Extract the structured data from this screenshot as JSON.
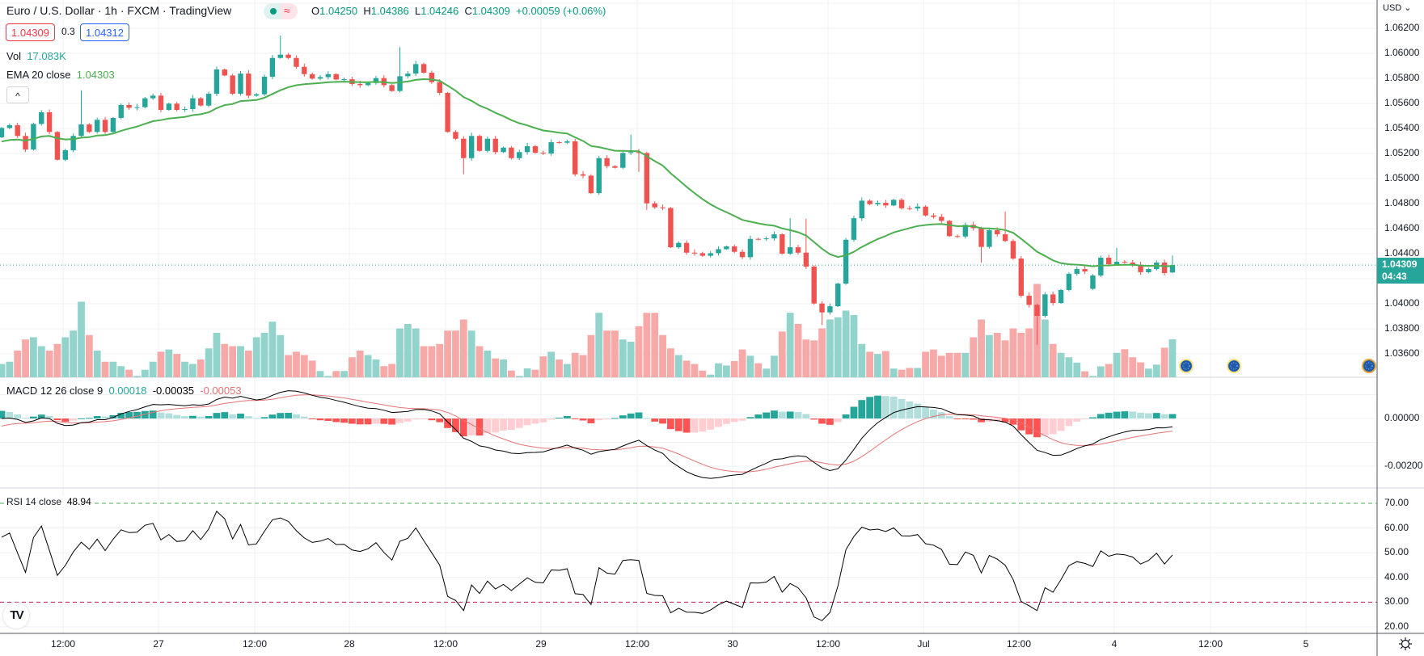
{
  "header": {
    "title": "Euro / U.S. Dollar · 1h · FXCM · TradingView",
    "status_wave": "≈",
    "ohlc": {
      "o_label": "O",
      "o": "1.04250",
      "h_label": "H",
      "h": "1.04386",
      "l_label": "L",
      "l": "1.04246",
      "c_label": "C",
      "c": "1.04309",
      "change": "+0.00059 (+0.06%)"
    },
    "sell_price": "1.04309",
    "spread": "0.3",
    "buy_price": "1.04312"
  },
  "legends": {
    "vol_label": "Vol",
    "vol_value": "17.083K",
    "ema_label": "EMA 20 close",
    "ema_value": "1.04303",
    "collapse_icon": "^",
    "macd_label": "MACD 12 26 close 9",
    "macd_hist": "0.00018",
    "macd_line": "-0.00035",
    "macd_signal": "-0.00053",
    "rsi_label": "RSI 14 close",
    "rsi_value": "48.94"
  },
  "price_axis": {
    "currency": "USD ⌄",
    "labels": [
      "1.06200",
      "1.06000",
      "1.05800",
      "1.05600",
      "1.05400",
      "1.05200",
      "1.05000",
      "1.04800",
      "1.04600",
      "1.04400",
      "1.04000",
      "1.03800",
      "1.03600"
    ],
    "last_price": "1.04309",
    "countdown": "04:43"
  },
  "macd_axis": {
    "labels": [
      "0.00000",
      "-0.00200"
    ]
  },
  "rsi_axis": {
    "labels": [
      "70.00",
      "60.00",
      "50.00",
      "40.00",
      "30.00",
      "20.00"
    ]
  },
  "time_axis": {
    "labels": [
      "12:00",
      "27",
      "12:00",
      "28",
      "12:00",
      "29",
      "12:00",
      "30",
      "12:00",
      "Jul",
      "12:00",
      "4",
      "12:00",
      "5"
    ]
  },
  "logo_text": "TV",
  "colors": {
    "up": "#26a69a",
    "down": "#ef5350",
    "vol_up": "#92d3cc",
    "vol_down": "#f7a9a7",
    "ema": "#4caf50",
    "macd": "#000000",
    "signal": "#e57373",
    "rsi": "#000000"
  },
  "chart_data": {
    "type": "candlestick",
    "symbol": "EURUSD",
    "interval": "1h",
    "first_open": 1.05329,
    "close": [
      1.05404,
      1.05426,
      1.0534,
      1.05232,
      1.05436,
      1.05529,
      1.05372,
      1.0515,
      1.05226,
      1.0534,
      1.05432,
      1.05372,
      1.05469,
      1.05372,
      1.05484,
      1.05587,
      1.05565,
      1.0557,
      1.05641,
      1.05662,
      1.05548,
      1.05598,
      1.05548,
      1.05555,
      1.05641,
      1.05583,
      1.05677,
      1.05871,
      1.05823,
      1.05677,
      1.05838,
      1.05662,
      1.05673,
      1.05813,
      1.05963,
      1.05989,
      1.05963,
      1.05892,
      1.05834,
      1.05798,
      1.0581,
      1.05834,
      1.05791,
      1.05793,
      1.05755,
      1.05746,
      1.05763,
      1.05802,
      1.05746,
      1.05699,
      1.05817,
      1.05838,
      1.05914,
      1.05845,
      1.0577,
      1.05684,
      1.05372,
      1.05318,
      1.05163,
      1.0534,
      1.05221,
      1.05318,
      1.05211,
      1.05247,
      1.05163,
      1.05211,
      1.05258,
      1.05206,
      1.052,
      1.0529,
      1.05286,
      1.05297,
      1.05034,
      1.05023,
      1.04884,
      1.05163,
      1.05099,
      1.05086,
      1.05204,
      1.05211,
      1.05204,
      1.04802,
      1.0477,
      1.04765,
      1.04451,
      1.04486,
      1.04408,
      1.04404,
      1.04383,
      1.04404,
      1.04436,
      1.04458,
      1.04415,
      1.04372,
      1.04518,
      1.04516,
      1.04522,
      1.04555,
      1.044,
      1.04451,
      1.04408,
      1.04297,
      1.04002,
      1.03931,
      1.0398,
      1.04161,
      1.04511,
      1.04683,
      1.04823,
      1.04795,
      1.04806,
      1.04785,
      1.0483,
      1.04763,
      1.04761,
      1.04776,
      1.04705,
      1.04694,
      1.04662,
      1.0454,
      1.04537,
      1.0463,
      1.04604,
      1.04454,
      1.04587,
      1.04555,
      1.04501,
      1.04361,
      1.04064,
      1.03991,
      1.03903,
      1.04075,
      1.04006,
      1.0411,
      1.04239,
      1.04277,
      1.04258,
      1.04226,
      1.04368,
      1.04316,
      1.04335,
      1.04329,
      1.0431,
      1.04252,
      1.04277,
      1.04329,
      1.04245,
      1.04309
    ],
    "open_overrides": {
      "137": 1.04119,
      "147": 1.0425
    },
    "high_overrides": {
      "10": 1.05705,
      "35": 1.06142,
      "50": 1.0605,
      "79": 1.0535,
      "99": 1.04683,
      "101": 1.04679,
      "126": 1.04737,
      "140": 1.04447,
      "147": 1.04386
    },
    "low_overrides": {
      "58": 1.05034,
      "80": 1.05053,
      "81": 1.04749,
      "103": 1.0383,
      "123": 1.04329,
      "130": 1.03673,
      "147": 1.04246
    },
    "volume_k": [
      6,
      7,
      12,
      17,
      18,
      14,
      12,
      15,
      18,
      21,
      34,
      19,
      12,
      7,
      7,
      5,
      3.4,
      0.6,
      3.4,
      7,
      11.5,
      12.5,
      10.5,
      7,
      6,
      8,
      13,
      20,
      15,
      14,
      14,
      12,
      18,
      20,
      25,
      19,
      10,
      11.5,
      10,
      7.5,
      2.8,
      0.6,
      2.8,
      2.8,
      9,
      12,
      10,
      8,
      5,
      6,
      22,
      24,
      22,
      14,
      14,
      15,
      21,
      21,
      26,
      21,
      14,
      12,
      8.5,
      8,
      3,
      0.6,
      4,
      3.4,
      9.4,
      11.5,
      8,
      6,
      11,
      10,
      19,
      29,
      21,
      21,
      17,
      16,
      23,
      29,
      29,
      19,
      13,
      10,
      7.5,
      6,
      3,
      1.2,
      6.3,
      5.3,
      7.3,
      12.5,
      9.7,
      6.3,
      3.9,
      9.7,
      20.6,
      29,
      24,
      17,
      16.6,
      22,
      26,
      27,
      30,
      28,
      15,
      11.5,
      10.5,
      11.8,
      3.9,
      3.4,
      4.2,
      4.2,
      11.5,
      12.5,
      9.7,
      11,
      11,
      11,
      18,
      26,
      19,
      20,
      16.6,
      22,
      20,
      22,
      42,
      26,
      15,
      11,
      9,
      6.6,
      2.7,
      0.6,
      4.9,
      6,
      11,
      12.6,
      9,
      6.7,
      3.9,
      5.7,
      13.3,
      17.083
    ],
    "ema_period": 20,
    "ema_start": 1.05284,
    "macd_params": [
      12,
      26,
      9
    ],
    "macd_signal_start": -0.0004,
    "rsi_period": 14,
    "rsi_levels": [
      70,
      30
    ],
    "price_range": [
      1.036,
      1.064
    ],
    "macd_range": [
      -0.0029,
      0.0017
    ],
    "rsi_range": [
      17,
      76
    ]
  }
}
